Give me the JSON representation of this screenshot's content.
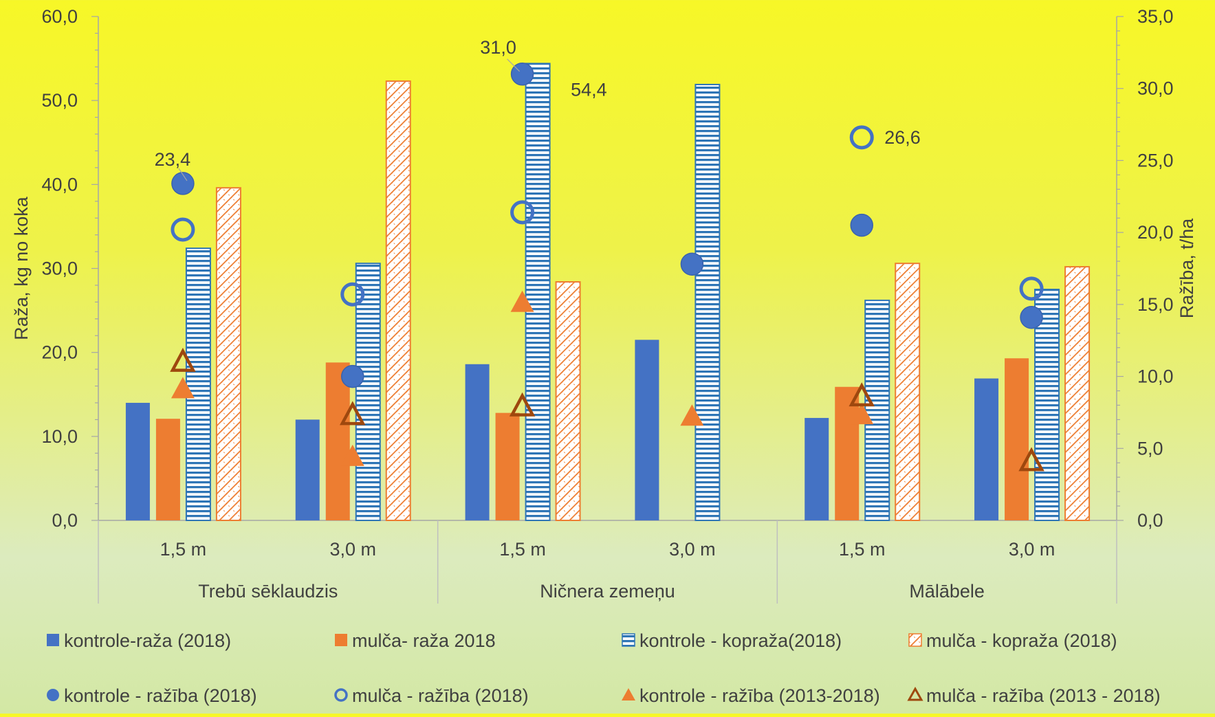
{
  "chart_data": {
    "type": "bar",
    "title": "",
    "ylabel_left": "Raža, kg no koka",
    "ylabel_right": "Ražība, t/ha",
    "ylim_left": [
      0,
      60
    ],
    "ylim_right": [
      0,
      35
    ],
    "yticks_left": [
      "0,0",
      "10,0",
      "20,0",
      "30,0",
      "40,0",
      "50,0",
      "60,0"
    ],
    "yticks_right": [
      "0,0",
      "5,0",
      "10,0",
      "15,0",
      "20,0",
      "25,0",
      "30,0",
      "35,0"
    ],
    "groups": [
      {
        "label": "Trebū sēklaudzis",
        "categories": [
          "1,5 m",
          "3,0 m"
        ]
      },
      {
        "label": "Ničnera zemeņu",
        "categories": [
          "1,5 m",
          "3,0 m"
        ]
      },
      {
        "label": "Mālābele",
        "categories": [
          "1,5 m",
          "3,0 m"
        ]
      }
    ],
    "bar_series": [
      {
        "name": "kontrole-raža (2018)",
        "style": "solid",
        "color": "#4472c4",
        "values": [
          14.0,
          12.0,
          18.6,
          21.5,
          12.2,
          16.9
        ]
      },
      {
        "name": "mulča- raža 2018",
        "style": "solid",
        "color": "#ed7d31",
        "values": [
          12.1,
          18.8,
          12.8,
          null,
          15.9,
          19.3
        ]
      },
      {
        "name": "kontrole - kopraža(2018)",
        "style": "hlines",
        "color": "#2e75b6",
        "values": [
          32.4,
          30.6,
          54.4,
          51.9,
          26.2,
          27.5
        ]
      },
      {
        "name": "mulča - kopraža (2018)",
        "style": "hatch",
        "color": "#ed7d31",
        "values": [
          39.6,
          52.3,
          28.4,
          null,
          30.6,
          30.2
        ]
      }
    ],
    "point_series": [
      {
        "name": "kontrole - ražība (2018)",
        "marker": "circle-filled",
        "color": "#4472c4",
        "values": [
          23.4,
          10.0,
          31.0,
          17.8,
          20.5,
          14.1
        ]
      },
      {
        "name": "mulča - ražība (2018)",
        "marker": "circle-open",
        "color": "#4472c4",
        "values": [
          20.2,
          15.7,
          21.4,
          null,
          26.6,
          16.1
        ]
      },
      {
        "name": "kontrole - ražība (2013-2018)",
        "marker": "triangle-filled",
        "color": "#ed7d31",
        "values": [
          9.1,
          4.4,
          15.1,
          7.2,
          7.3,
          null
        ]
      },
      {
        "name": "mulča - ražība (2013 - 2018)",
        "marker": "triangle-open",
        "color": "#9e480e",
        "values": [
          11.0,
          7.3,
          7.9,
          null,
          8.6,
          4.1
        ]
      }
    ],
    "data_labels": [
      {
        "text": "23,4"
      },
      {
        "text": "31,0"
      },
      {
        "text": "54,4"
      },
      {
        "text": "26,6"
      }
    ],
    "legend_position": "bottom",
    "grid": false
  }
}
